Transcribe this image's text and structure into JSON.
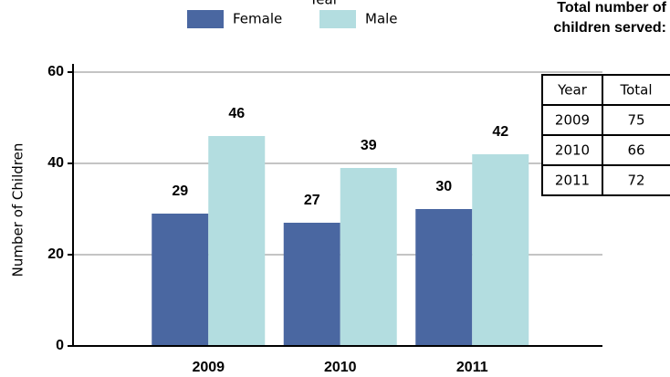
{
  "chart_data": {
    "type": "bar",
    "legend_title": "Year",
    "y_label": "Number of Children",
    "categories": [
      "2009",
      "2010",
      "2011"
    ],
    "series": [
      {
        "name": "Female",
        "color": "#4a67a1",
        "values": [
          29,
          27,
          30
        ]
      },
      {
        "name": "Male",
        "color": "#b3dde0",
        "values": [
          46,
          39,
          42
        ]
      }
    ],
    "ylim": [
      0,
      60
    ],
    "yticks": [
      0,
      20,
      40,
      60
    ],
    "grid": true
  },
  "table": {
    "title": [
      "Total number of",
      "children served:"
    ],
    "header": [
      "Year",
      "Total"
    ],
    "rows": [
      [
        "2009",
        "75"
      ],
      [
        "2010",
        "66"
      ],
      [
        "2011",
        "72"
      ]
    ]
  }
}
